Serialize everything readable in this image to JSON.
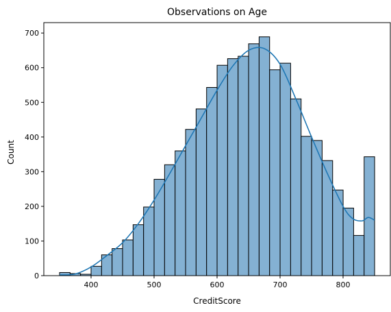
{
  "chart_data": {
    "type": "bar",
    "title": "Observations on Age",
    "xlabel": "CreditScore",
    "ylabel": "Count",
    "xlim": [
      325,
      875
    ],
    "ylim": [
      0,
      730
    ],
    "xticks": [
      400,
      500,
      600,
      700,
      800
    ],
    "yticks": [
      0,
      100,
      200,
      300,
      400,
      500,
      600,
      700
    ],
    "bin_start": 350,
    "bin_width": 16.67,
    "values": [
      9,
      6,
      4,
      27,
      60,
      78,
      103,
      147,
      198,
      278,
      320,
      360,
      422,
      481,
      543,
      607,
      626,
      633,
      669,
      689,
      594,
      613,
      510,
      402,
      390,
      332,
      247,
      195,
      116,
      343
    ],
    "kde": {
      "x": [
        350,
        375,
        400,
        425,
        450,
        475,
        500,
        525,
        550,
        575,
        600,
        625,
        650,
        675,
        700,
        725,
        750,
        775,
        800,
        815,
        830,
        840,
        850
      ],
      "y": [
        2,
        5,
        25,
        58,
        95,
        150,
        218,
        295,
        375,
        455,
        535,
        605,
        650,
        655,
        610,
        510,
        400,
        295,
        200,
        165,
        158,
        168,
        160
      ]
    },
    "grid": false,
    "colors": {
      "bar": "#84b1d3",
      "edge": "#000000",
      "kde": "#1f77b4"
    }
  }
}
